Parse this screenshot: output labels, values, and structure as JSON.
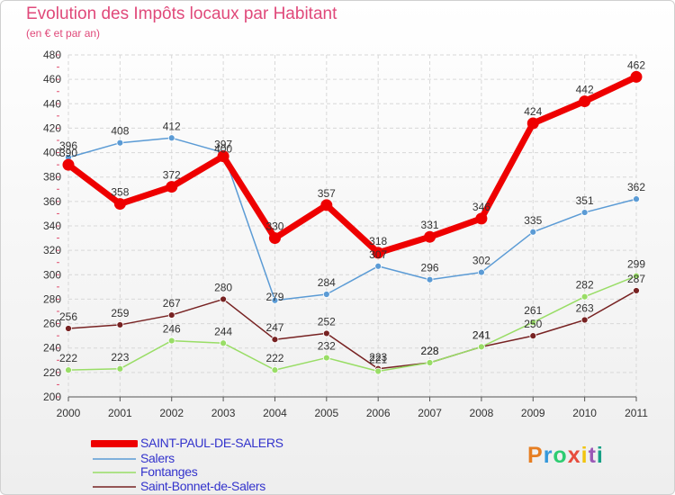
{
  "chart_data": {
    "type": "line",
    "title": "Evolution des Impôts locaux par Habitant",
    "subtitle": "(en € et par an)",
    "xlabel": "",
    "ylabel": "",
    "x": [
      "2000",
      "2001",
      "2002",
      "2003",
      "2004",
      "2005",
      "2006",
      "2007",
      "2008",
      "2009",
      "2010",
      "2011"
    ],
    "ylim": [
      200,
      480
    ],
    "yticks": [
      200,
      220,
      240,
      260,
      280,
      300,
      320,
      340,
      360,
      380,
      400,
      420,
      440,
      460,
      480
    ],
    "grid": true,
    "legend_position": "bottom-left",
    "series": [
      {
        "name": "SAINT-PAUL-DE-SALERS",
        "color": "#ee0000",
        "values": [
          390,
          358,
          372,
          397,
          330,
          357,
          318,
          331,
          346,
          424,
          442,
          462
        ],
        "labels": [
          "390",
          "358",
          "372",
          "397",
          "330",
          "357",
          "318",
          "331",
          "346",
          "424",
          "442",
          "462"
        ]
      },
      {
        "name": "Salers",
        "color": "#5b9bd5",
        "values": [
          396,
          408,
          412,
          400,
          279,
          284,
          307,
          296,
          302,
          335,
          351,
          362
        ],
        "labels": [
          "396",
          "408",
          "412",
          "400",
          "279",
          "284",
          "307",
          "296",
          "302",
          "335",
          "351",
          "362"
        ]
      },
      {
        "name": "Fontanges",
        "color": "#99dd66",
        "values": [
          222,
          223,
          246,
          244,
          222,
          232,
          221,
          228,
          241,
          261,
          282,
          299
        ],
        "labels": [
          "222",
          "223",
          "246",
          "244",
          "222",
          "232",
          "221",
          "228",
          "241",
          "261",
          "282",
          "299"
        ]
      },
      {
        "name": "Saint-Bonnet-de-Salers",
        "color": "#772222",
        "values": [
          256,
          259,
          267,
          280,
          247,
          252,
          223,
          228,
          241,
          250,
          263,
          287
        ],
        "labels": [
          "256",
          "259",
          "267",
          "280",
          "247",
          "252",
          "223",
          "228",
          "241",
          "250",
          "263",
          "287"
        ]
      }
    ]
  },
  "brand": {
    "name": "Proxiti"
  }
}
